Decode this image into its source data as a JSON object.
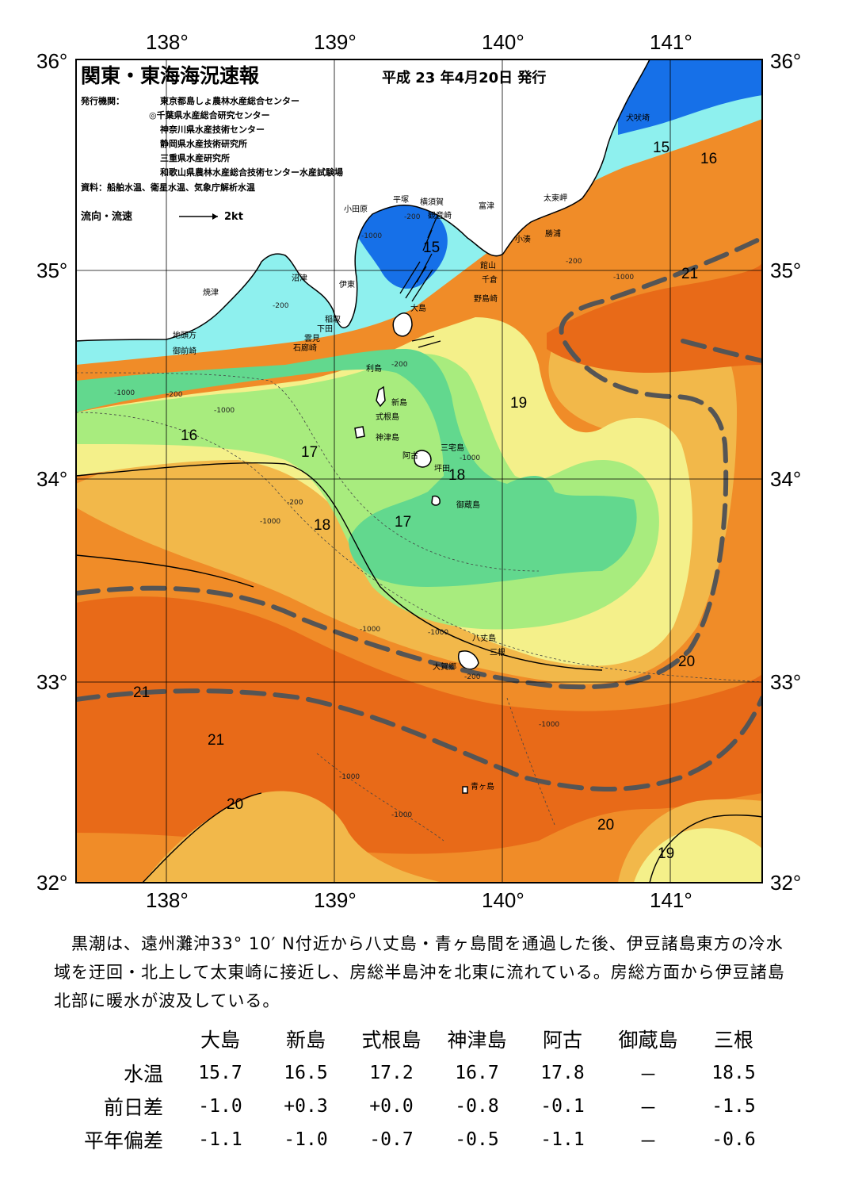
{
  "header": {
    "title": "関東・東海海況速報",
    "date": "平成 23 年4月20日 発行",
    "publisher_label": "発行機関：",
    "publishers": [
      "東京都島しょ農林水産総合センター",
      "◎千葉県水産総合研究センター",
      "神奈川県水産技術センター",
      "静岡県水産技術研究所",
      "三重県水産研究所",
      "和歌山県農林水産総合技術センター水産試験場"
    ],
    "sources": "資料：船舶水温、衛星水温、気象庁解析水温",
    "current_legend": "流向・流速",
    "current_scale": "2kt"
  },
  "axes": {
    "lon_labels": [
      "138°",
      "139°",
      "140°",
      "141°"
    ],
    "lat_labels": [
      "36°",
      "35°",
      "34°",
      "33°",
      "32°"
    ]
  },
  "places": [
    "犬吠埼",
    "太東岬",
    "勝浦",
    "小湊",
    "富津",
    "横須賀",
    "観音崎",
    "平塚",
    "小田原",
    "館山",
    "千倉",
    "野島崎",
    "沼津",
    "伊東",
    "焼津",
    "稲取",
    "下田",
    "雲見",
    "石廊崎",
    "地頭方",
    "御前崎",
    "大島",
    "利島",
    "新島",
    "式根島",
    "神津島",
    "三宅島",
    "阿古",
    "坪田",
    "御蔵島",
    "八丈島",
    "三根",
    "大賀郷",
    "青ヶ島"
  ],
  "isotherm_labels": [
    "15",
    "16",
    "21",
    "15",
    "16",
    "17",
    "18",
    "19",
    "18",
    "17",
    "20",
    "21",
    "21",
    "20",
    "20",
    "19"
  ],
  "depth_labels": [
    "-200",
    "-1000"
  ],
  "colors": {
    "t15": "#1670e8",
    "t16": "#8ef0ee",
    "t17": "#62d88e",
    "t18": "#a8ec7e",
    "t19": "#f4f08a",
    "t20": "#f2b84a",
    "t21": "#f08c28",
    "t22": "#e86a18",
    "kuroshio": "#555555"
  },
  "summary": "黒潮は、遠州灘沖33° 10′ N付近から八丈島・青ヶ島間を通過した後、伊豆諸島東方の冷水域を迂回・北上して太東崎に接近し、房総半島沖を北東に流れている。房総方面から伊豆諸島北部に暖水が波及している。",
  "table": {
    "stations": [
      "大島",
      "新島",
      "式根島",
      "神津島",
      "阿古",
      "御蔵島",
      "三根"
    ],
    "rows": [
      {
        "label": "水温",
        "values": [
          "15.7",
          "16.5",
          "17.2",
          "16.7",
          "17.8",
          "－",
          "18.5"
        ]
      },
      {
        "label": "前日差",
        "values": [
          "-1.0",
          "+0.3",
          "+0.0",
          "-0.8",
          "-0.1",
          "－",
          "-1.5"
        ]
      },
      {
        "label": "平年偏差",
        "values": [
          "-1.1",
          "-1.0",
          "-0.7",
          "-0.5",
          "-1.1",
          "－",
          "-0.6"
        ]
      }
    ]
  }
}
